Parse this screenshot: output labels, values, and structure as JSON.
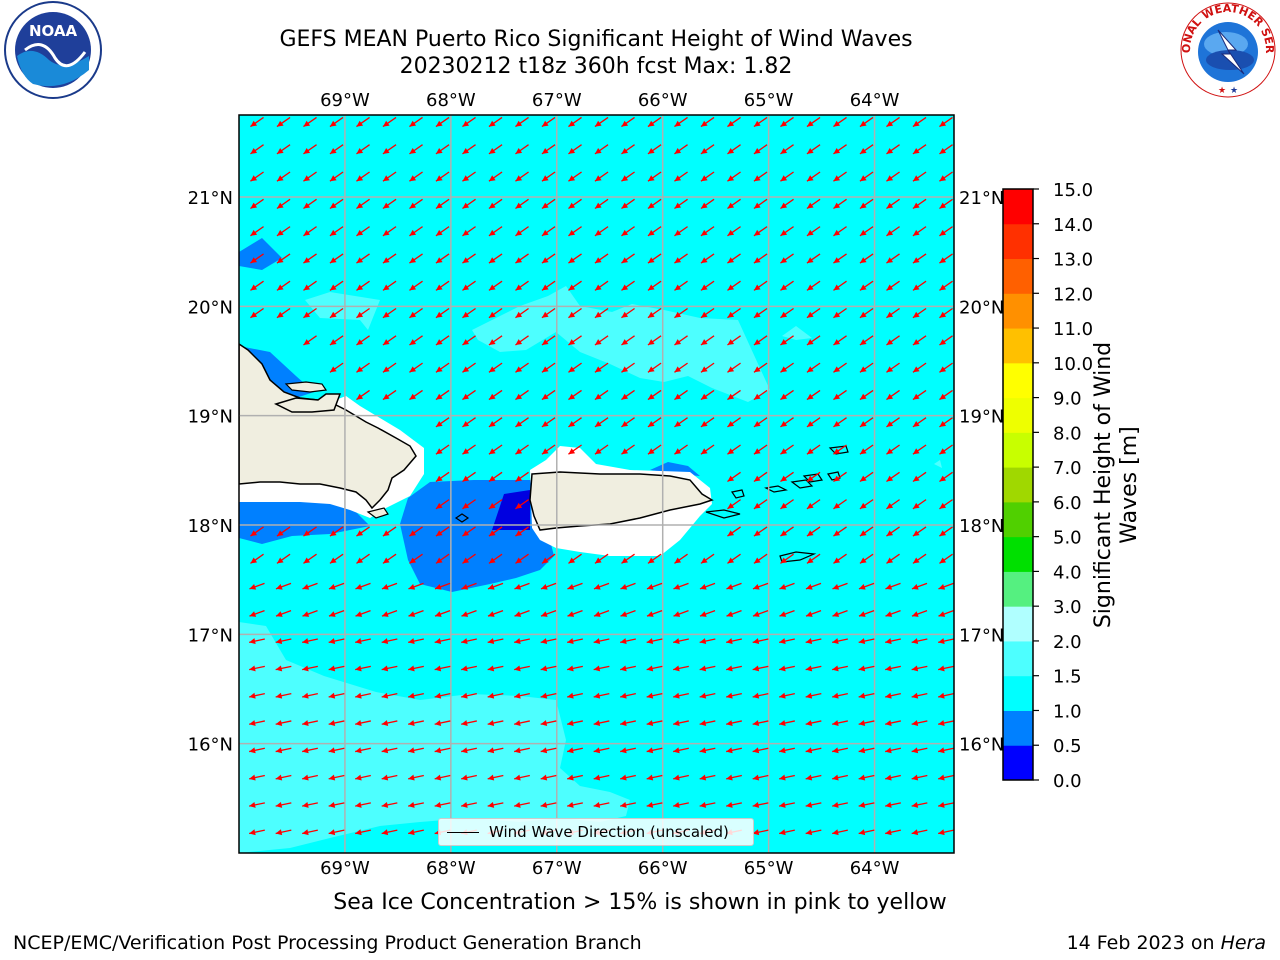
{
  "title": {
    "line1": "GEFS MEAN Puerto Rico Significant Height of Wind Waves",
    "line2": "20230212 t18z 360h fcst   Max: 1.82"
  },
  "logos": {
    "left": {
      "text": "NOAA",
      "icon": "noaa-logo"
    },
    "right": {
      "text": "NATIONAL WEATHER SERVICE",
      "icon": "nws-logo"
    }
  },
  "map": {
    "lon_labels": [
      "69°W",
      "68°W",
      "67°W",
      "66°W",
      "65°W",
      "64°W"
    ],
    "lat_labels": [
      "21°N",
      "20°N",
      "19°N",
      "18°N",
      "17°N",
      "16°N"
    ],
    "extent": {
      "lon_min": -70.0,
      "lon_max": -63.25,
      "lat_min": 15.0,
      "lat_max": 21.75
    },
    "wave_direction": "toward southwest",
    "colors": {
      "ocean_main": "#00ffff",
      "ocean_light": "#4dffff",
      "band_blue": "#0080ff",
      "deep_blue": "#0000e0",
      "land": "#f0eee0",
      "arrow": "#ff0000"
    }
  },
  "legend": {
    "label": "Wind Wave Direction (unscaled)"
  },
  "colorbar": {
    "label_line1": "Significant Height of Wind",
    "label_line2": "Waves [m]",
    "ticks": [
      "0.0",
      "0.5",
      "1.0",
      "1.5",
      "2.0",
      "3.0",
      "4.0",
      "5.0",
      "6.0",
      "7.0",
      "8.0",
      "9.0",
      "10.0",
      "11.0",
      "12.0",
      "13.0",
      "14.0",
      "15.0"
    ],
    "colors": [
      "#0000ff",
      "#0080ff",
      "#00ffff",
      "#4dffff",
      "#b0ffff",
      "#55f080",
      "#00e000",
      "#50d000",
      "#a0d800",
      "#c8ff00",
      "#eeff00",
      "#ffff00",
      "#ffc000",
      "#ff9000",
      "#ff6000",
      "#ff3000",
      "#ff0000"
    ]
  },
  "subcaption": "Sea Ice Concentration > 15% is shown in pink to yellow",
  "footer": {
    "left": "NCEP/EMC/Verification Post Processing Product Generation Branch",
    "right_prefix": "14 Feb 2023 on ",
    "right_italic": "Hera"
  }
}
